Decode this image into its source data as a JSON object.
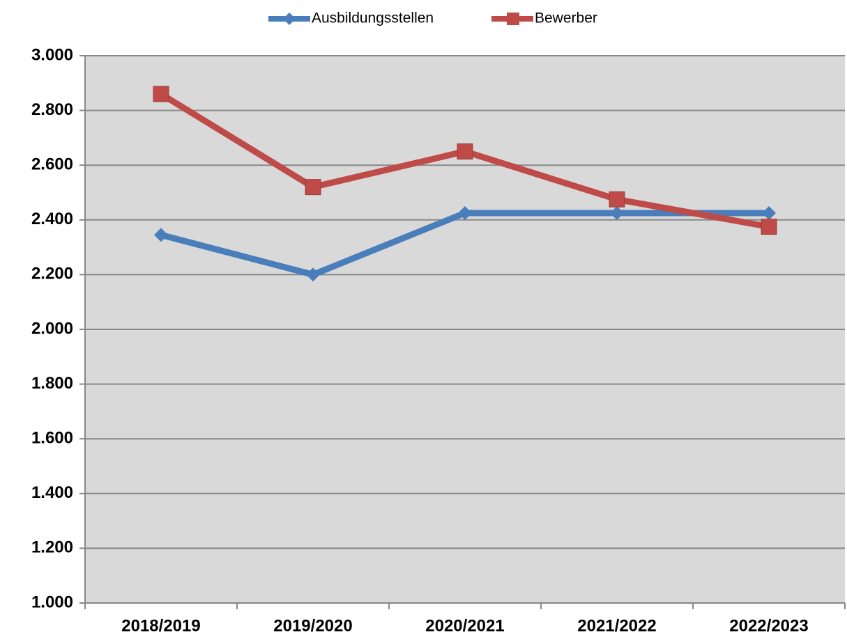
{
  "chart_data": {
    "type": "line",
    "categories": [
      "2018/2019",
      "2019/2020",
      "2020/2021",
      "2021/2022",
      "2022/2023"
    ],
    "series": [
      {
        "name": "Ausbildungsstellen",
        "color": "#4a7ebb",
        "marker": "diamond",
        "values": [
          2345,
          2200,
          2425,
          2425,
          2425
        ]
      },
      {
        "name": "Bewerber",
        "color": "#be4b48",
        "marker": "square",
        "values": [
          2860,
          2520,
          2650,
          2475,
          2375
        ]
      }
    ],
    "ylim": [
      1000,
      3000
    ],
    "yticks": [
      {
        "value": 1000,
        "label": "1.000"
      },
      {
        "value": 1200,
        "label": "1.200"
      },
      {
        "value": 1400,
        "label": "1.400"
      },
      {
        "value": 1600,
        "label": "1.600"
      },
      {
        "value": 1800,
        "label": "1.800"
      },
      {
        "value": 2000,
        "label": "2.000"
      },
      {
        "value": 2200,
        "label": "2.200"
      },
      {
        "value": 2400,
        "label": "2.400"
      },
      {
        "value": 2600,
        "label": "2.600"
      },
      {
        "value": 2800,
        "label": "2.800"
      },
      {
        "value": 3000,
        "label": "3.000"
      }
    ],
    "grid": true,
    "legend": "top"
  }
}
